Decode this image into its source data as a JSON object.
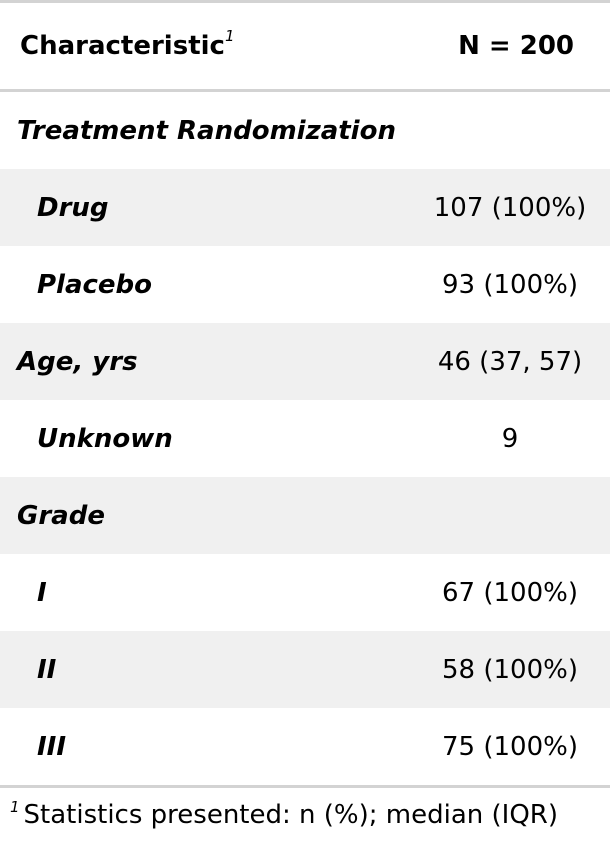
{
  "header": {
    "characteristic_label": "Characteristic",
    "characteristic_footnote_mark": "1",
    "n_label": "N = 200"
  },
  "rows": [
    {
      "label": "Treatment Randomization",
      "value": ""
    },
    {
      "label": "Drug",
      "value": "107 (100%)"
    },
    {
      "label": "Placebo",
      "value": "93 (100%)"
    },
    {
      "label": "Age, yrs",
      "value": "46 (37, 57)"
    },
    {
      "label": "Unknown",
      "value": "9"
    },
    {
      "label": "Grade",
      "value": ""
    },
    {
      "label": "I",
      "value": "67 (100%)"
    },
    {
      "label": "II",
      "value": "58 (100%)"
    },
    {
      "label": "III",
      "value": "75 (100%)"
    }
  ],
  "footnote": {
    "mark": "1",
    "text": "Statistics presented: n (%); median (IQR)"
  }
}
